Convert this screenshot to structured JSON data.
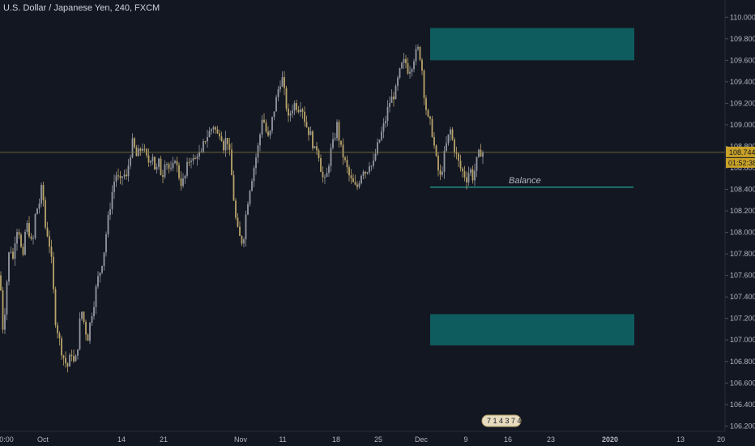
{
  "symbol_title": "U.S. Dollar / Japanese Yen, 240, FXCM",
  "price_axis": {
    "ticks": [
      "110.000",
      "109.800",
      "109.600",
      "109.400",
      "109.200",
      "109.000",
      "108.800",
      "108.600",
      "108.400",
      "108.200",
      "108.000",
      "107.800",
      "107.600",
      "107.400",
      "107.200",
      "107.000",
      "106.800",
      "106.600",
      "106.400",
      "106.200"
    ],
    "current_price": "108.744",
    "countdown": "01:52:38"
  },
  "time_axis": {
    "labels": [
      {
        "text": "0:00"
      },
      {
        "text": "Oct"
      },
      {
        "text": "14"
      },
      {
        "text": "21"
      },
      {
        "text": "Nov"
      },
      {
        "text": "11"
      },
      {
        "text": "18"
      },
      {
        "text": "25"
      },
      {
        "text": "Dec"
      },
      {
        "text": "9"
      },
      {
        "text": "16"
      },
      {
        "text": "23"
      },
      {
        "text": "2020"
      },
      {
        "text": "13"
      },
      {
        "text": "20"
      }
    ]
  },
  "drawings": {
    "balance_label": "Balance",
    "balance_level": 108.42,
    "upper_zone": [
      109.6,
      109.9
    ],
    "lower_zone": [
      106.95,
      107.24
    ],
    "zone_color": "#0e5c5e",
    "balance_line_color": "#26a69a"
  },
  "events_badge": "7 1 4 3 7 4",
  "colors": {
    "background": "#131722",
    "up_candle": "#9598a1",
    "down_candle": "#b8a46a",
    "price_tag": "#c9a227"
  },
  "chart_data": {
    "type": "candlestick",
    "title": "U.S. Dollar / Japanese Yen, 240, FXCM",
    "ylim": [
      106.15,
      110.1
    ],
    "close_path": [
      [
        0,
        107.6
      ],
      [
        4,
        107.05
      ],
      [
        8,
        107.5
      ],
      [
        12,
        107.9
      ],
      [
        16,
        107.75
      ],
      [
        20,
        108.05
      ],
      [
        24,
        108.0
      ],
      [
        28,
        107.7
      ],
      [
        32,
        108.1
      ],
      [
        36,
        108.0
      ],
      [
        40,
        107.85
      ],
      [
        44,
        108.2
      ],
      [
        48,
        108.25
      ],
      [
        52,
        108.45
      ],
      [
        56,
        108.05
      ],
      [
        60,
        107.95
      ],
      [
        64,
        107.7
      ],
      [
        68,
        107.2
      ],
      [
        72,
        107.05
      ],
      [
        76,
        106.9
      ],
      [
        80,
        106.8
      ],
      [
        84,
        106.75
      ],
      [
        88,
        106.9
      ],
      [
        92,
        106.75
      ],
      [
        96,
        106.95
      ],
      [
        100,
        107.3
      ],
      [
        104,
        107.15
      ],
      [
        108,
        107.0
      ],
      [
        112,
        107.2
      ],
      [
        116,
        107.35
      ],
      [
        120,
        107.55
      ],
      [
        124,
        107.65
      ],
      [
        128,
        107.8
      ],
      [
        132,
        108.05
      ],
      [
        136,
        108.25
      ],
      [
        140,
        108.45
      ],
      [
        144,
        108.55
      ],
      [
        148,
        108.45
      ],
      [
        152,
        108.55
      ],
      [
        156,
        108.5
      ],
      [
        160,
        108.7
      ],
      [
        164,
        108.85
      ],
      [
        168,
        108.7
      ],
      [
        172,
        108.75
      ],
      [
        176,
        108.8
      ],
      [
        180,
        108.7
      ],
      [
        184,
        108.65
      ],
      [
        188,
        108.75
      ],
      [
        192,
        108.55
      ],
      [
        196,
        108.65
      ],
      [
        200,
        108.5
      ],
      [
        204,
        108.7
      ],
      [
        208,
        108.6
      ],
      [
        212,
        108.55
      ],
      [
        216,
        108.7
      ],
      [
        220,
        108.55
      ],
      [
        224,
        108.45
      ],
      [
        228,
        108.5
      ],
      [
        232,
        108.65
      ],
      [
        236,
        108.7
      ],
      [
        240,
        108.65
      ],
      [
        244,
        108.75
      ],
      [
        248,
        108.7
      ],
      [
        252,
        108.85
      ],
      [
        256,
        108.9
      ],
      [
        260,
        108.95
      ],
      [
        264,
        109.0
      ],
      [
        268,
        108.9
      ],
      [
        272,
        108.95
      ],
      [
        276,
        108.8
      ],
      [
        280,
        108.9
      ],
      [
        284,
        108.7
      ],
      [
        288,
        108.35
      ],
      [
        292,
        108.05
      ],
      [
        296,
        107.95
      ],
      [
        300,
        107.9
      ],
      [
        304,
        108.2
      ],
      [
        308,
        108.4
      ],
      [
        312,
        108.55
      ],
      [
        316,
        108.7
      ],
      [
        320,
        108.85
      ],
      [
        324,
        109.1
      ],
      [
        328,
        108.95
      ],
      [
        332,
        108.85
      ],
      [
        336,
        109.05
      ],
      [
        340,
        109.2
      ],
      [
        344,
        109.35
      ],
      [
        348,
        109.45
      ],
      [
        352,
        109.25
      ],
      [
        356,
        109.05
      ],
      [
        360,
        109.15
      ],
      [
        364,
        109.2
      ],
      [
        368,
        109.15
      ],
      [
        372,
        109.2
      ],
      [
        376,
        109.05
      ],
      [
        380,
        108.95
      ],
      [
        384,
        108.9
      ],
      [
        388,
        108.75
      ],
      [
        392,
        108.8
      ],
      [
        396,
        108.6
      ],
      [
        400,
        108.45
      ],
      [
        404,
        108.55
      ],
      [
        408,
        108.75
      ],
      [
        412,
        108.85
      ],
      [
        416,
        109.0
      ],
      [
        420,
        108.8
      ],
      [
        424,
        108.7
      ],
      [
        428,
        108.6
      ],
      [
        432,
        108.5
      ],
      [
        436,
        108.45
      ],
      [
        440,
        108.4
      ],
      [
        444,
        108.5
      ],
      [
        448,
        108.6
      ],
      [
        452,
        108.55
      ],
      [
        456,
        108.65
      ],
      [
        460,
        108.6
      ],
      [
        464,
        108.75
      ],
      [
        468,
        108.85
      ],
      [
        472,
        108.95
      ],
      [
        476,
        109.05
      ],
      [
        480,
        109.2
      ],
      [
        484,
        109.25
      ],
      [
        488,
        109.3
      ],
      [
        492,
        109.45
      ],
      [
        496,
        109.55
      ],
      [
        500,
        109.6
      ],
      [
        504,
        109.5
      ],
      [
        508,
        109.55
      ],
      [
        512,
        109.65
      ],
      [
        516,
        109.7
      ],
      [
        520,
        109.6
      ],
      [
        524,
        109.25
      ],
      [
        528,
        109.05
      ],
      [
        532,
        109.0
      ],
      [
        536,
        108.8
      ],
      [
        540,
        108.6
      ],
      [
        544,
        108.5
      ],
      [
        548,
        108.7
      ],
      [
        552,
        108.85
      ],
      [
        556,
        108.95
      ],
      [
        560,
        108.8
      ],
      [
        564,
        108.7
      ],
      [
        568,
        108.6
      ],
      [
        572,
        108.55
      ],
      [
        576,
        108.5
      ],
      [
        580,
        108.6
      ],
      [
        584,
        108.5
      ],
      [
        588,
        108.65
      ],
      [
        592,
        108.75
      ],
      [
        596,
        108.744
      ]
    ]
  }
}
